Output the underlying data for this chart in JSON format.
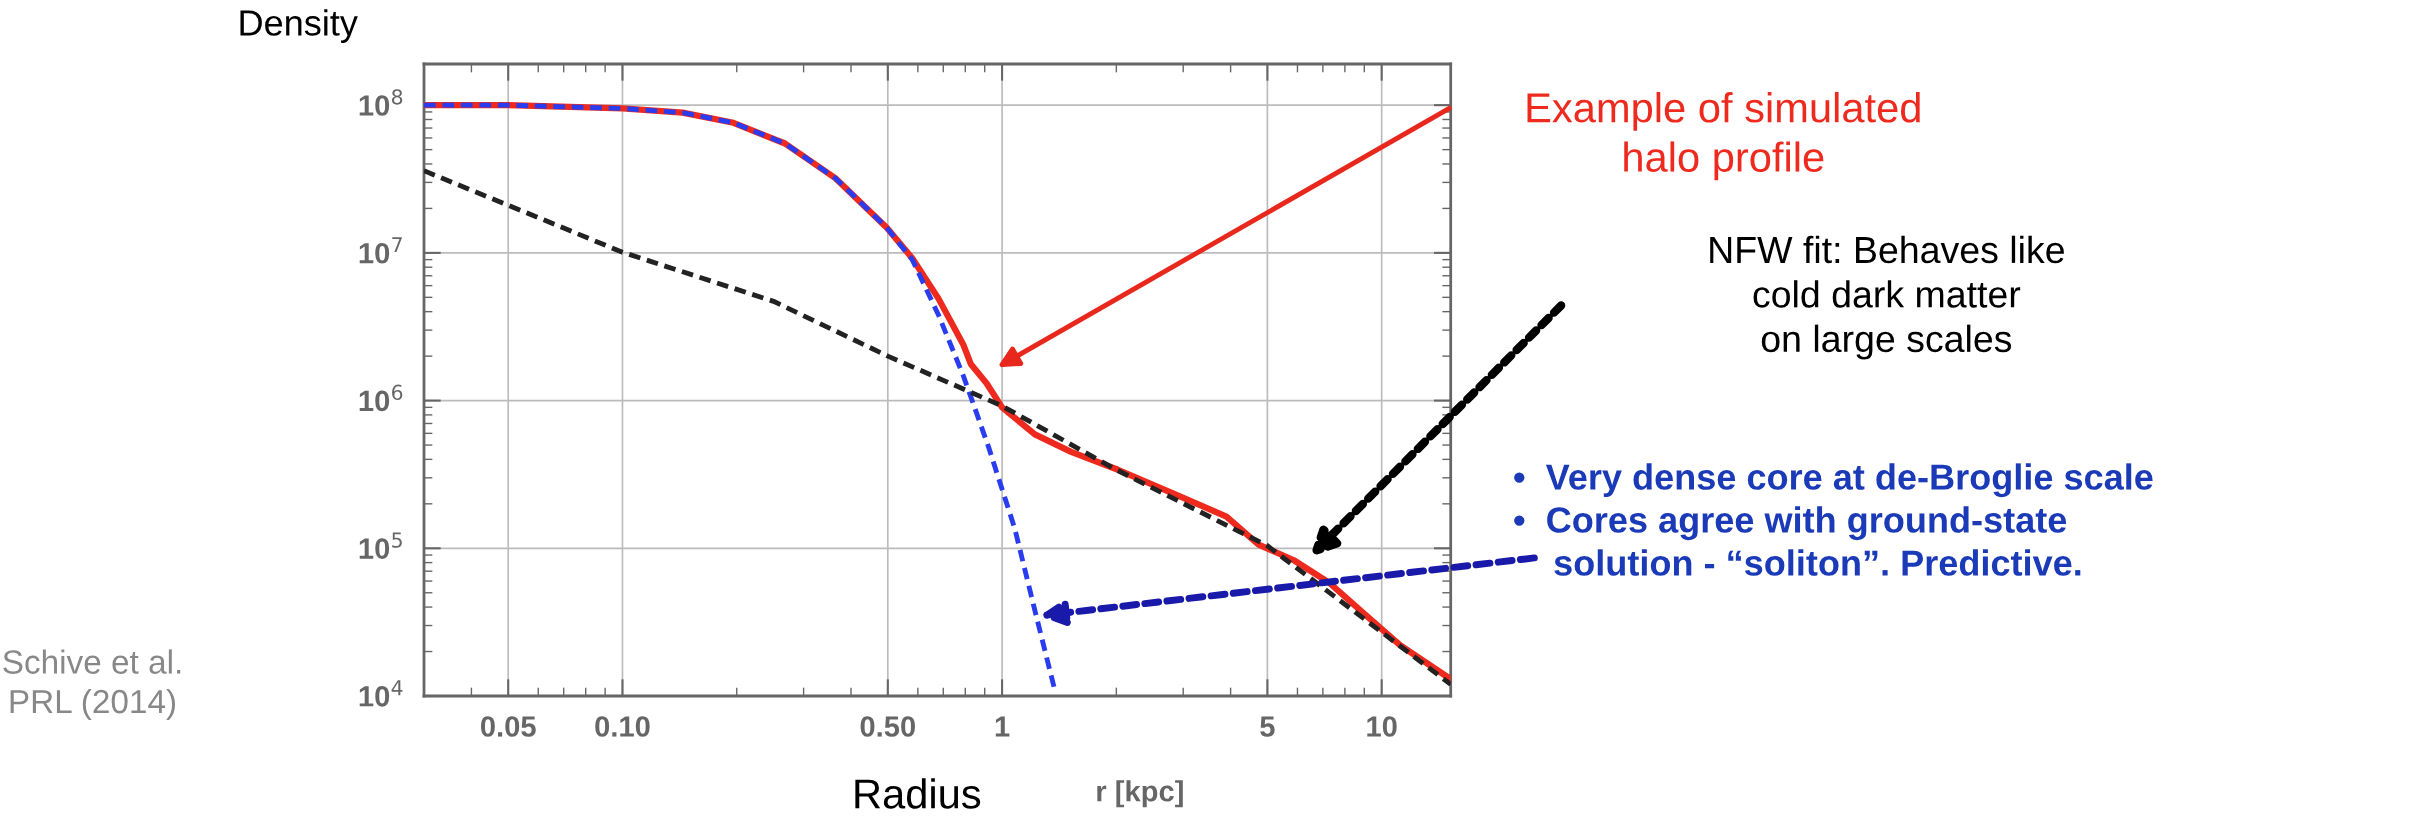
{
  "chart_data": {
    "type": "line",
    "ylabel": "Density",
    "xlabel": "Radius",
    "log": "xy",
    "xlim": [
      0.03,
      15.2
    ],
    "ylim": [
      10000,
      190000000
    ],
    "xticks": [
      0.05,
      {
        "value": 0.1,
        "label": "0.10"
      },
      {
        "value": 0.5,
        "label": "0.50"
      },
      1,
      5,
      10
    ],
    "yticks": [
      {
        "value": 10000,
        "label": "10$^{4}$"
      },
      {
        "value": 100000,
        "label": "10$^{5}$"
      },
      {
        "value": 1000000,
        "label": "10$^{6}$"
      },
      {
        "value": 10000000,
        "label": "10$^{7}$"
      },
      {
        "value": 100000000,
        "label": "10$^{8}$"
      }
    ],
    "grid": true,
    "series": [
      {
        "color": "#2a3cf0",
        "line_style": "dashed",
        "x": [
          0.03,
          0.05,
          0.1,
          0.144,
          0.196,
          0.268,
          0.364,
          0.497,
          0.58,
          0.68,
          0.79,
          0.92,
          1.08,
          1.22,
          1.38
        ],
        "values": [
          100000000,
          100000000,
          95000000,
          89000000,
          76000000,
          55000000,
          32000000,
          14800000,
          9000000,
          3800000,
          1480000,
          490000,
          136000,
          38000,
          10700
        ]
      },
      {
        "color": "#ee2a1e",
        "line_style": "solid",
        "x": [
          0.03,
          0.05,
          0.1,
          0.144,
          0.196,
          0.268,
          0.364,
          0.497,
          0.58,
          0.68,
          0.79,
          0.828,
          0.91,
          1.0,
          1.22,
          1.52,
          2.02,
          2.88,
          3.9,
          4.74,
          5.87,
          7.3,
          9.0,
          11.2,
          15.2
        ],
        "values": [
          100000000,
          100000000,
          95000000,
          89000000,
          76000000,
          55000000,
          32000000,
          14800000,
          9200000,
          4900000,
          2400000,
          1760000,
          1310000,
          900000,
          590000,
          450000,
          340000,
          230000,
          164000,
          106000,
          83000,
          58000,
          36000,
          22000,
          13000
        ]
      },
      {
        "color": "#222222",
        "line_style": "dashed",
        "x": [
          0.03,
          0.05,
          0.1,
          0.25,
          0.5,
          1,
          2,
          5,
          15.2
        ],
        "values": [
          36000000,
          21000000,
          10100000,
          4700000,
          2000000,
          920000,
          340000,
          104000,
          12000
        ]
      }
    ],
    "annotations": [
      "Example of simulated\nhalo profile",
      "NFW fit: Behaves like\ncold dark matter\non large scales",
      "•  Very dense core at de-Broglie scale\n•  Cores agree with ground-state\n    solution - “soliton”. Predictive.",
      "r [kpc]",
      "Schive et al.\nPRL (2014)"
    ]
  }
}
